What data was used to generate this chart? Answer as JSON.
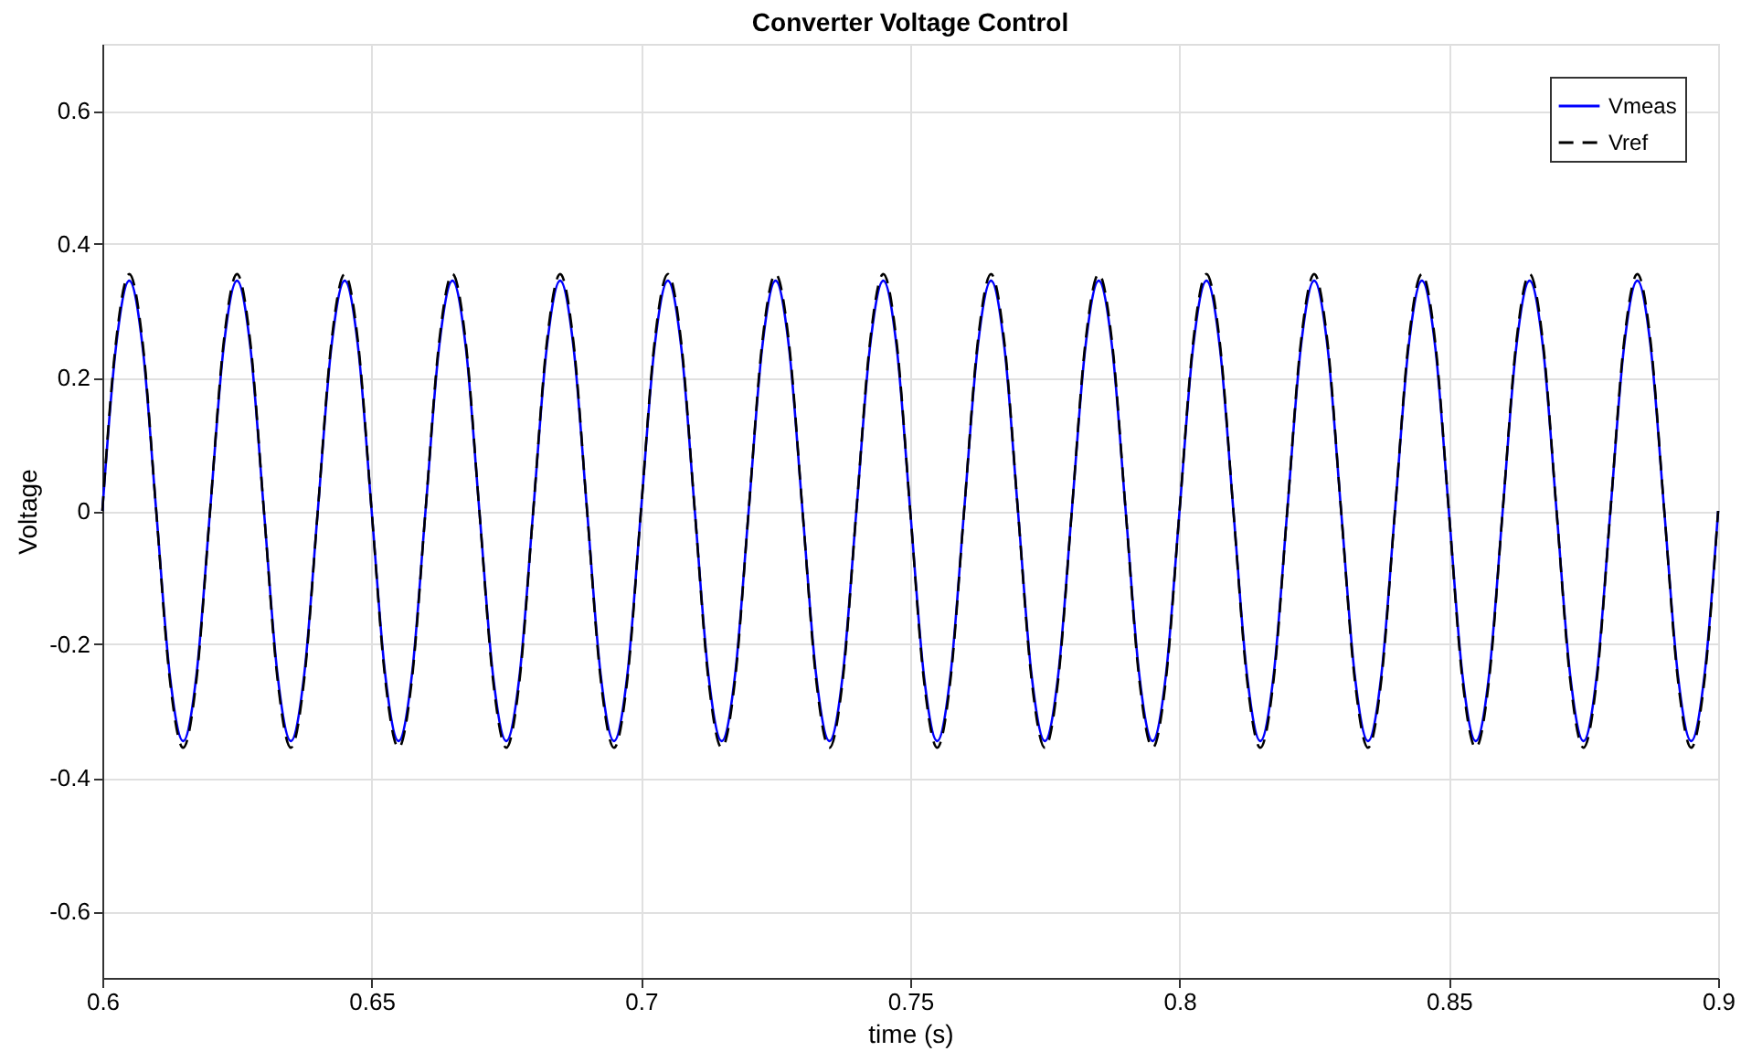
{
  "chart_data": {
    "type": "line",
    "title": "Converter Voltage Control",
    "xlabel": "time (s)",
    "ylabel": "Voltage",
    "x": [
      0.6,
      0.6025,
      0.605,
      0.6075,
      0.61,
      0.6125,
      0.615,
      0.6175,
      0.62,
      0.6225,
      0.625,
      0.6275,
      0.63,
      0.6325,
      0.635,
      0.6375,
      0.64,
      0.6425,
      0.645,
      0.6475,
      0.65,
      0.6525,
      0.655,
      0.6575,
      0.66,
      0.6625,
      0.665,
      0.6675,
      0.67,
      0.6725,
      0.675,
      0.6775,
      0.68,
      0.6825,
      0.685,
      0.6875,
      0.69,
      0.6925,
      0.695,
      0.6975,
      0.7,
      0.7025,
      0.705,
      0.7075,
      0.71,
      0.7125,
      0.715,
      0.7175,
      0.72,
      0.7225,
      0.725,
      0.7275,
      0.73,
      0.7325,
      0.735,
      0.7375,
      0.74,
      0.7425,
      0.745,
      0.7475,
      0.75,
      0.7525,
      0.755,
      0.7575,
      0.76,
      0.7625,
      0.765,
      0.7675,
      0.77,
      0.7725,
      0.775,
      0.7775,
      0.78,
      0.7825,
      0.785,
      0.7875,
      0.79,
      0.7925,
      0.795,
      0.7975,
      0.8,
      0.8025,
      0.805,
      0.8075,
      0.81,
      0.8125,
      0.815,
      0.8175,
      0.82,
      0.8225,
      0.825,
      0.8275,
      0.83,
      0.8325,
      0.835,
      0.8375,
      0.84,
      0.8425,
      0.845,
      0.8475,
      0.85,
      0.8525,
      0.855,
      0.8575,
      0.86,
      0.8625,
      0.865,
      0.8675,
      0.87,
      0.8725,
      0.875,
      0.8775,
      0.88,
      0.8825,
      0.885,
      0.8875,
      0.89,
      0.8925,
      0.895,
      0.8975,
      0.9
    ],
    "series": [
      {
        "name": "Vmeas",
        "color": "#0000ff",
        "line_style": "solid",
        "values": [
          0,
          0.244,
          0.345,
          0.244,
          0,
          -0.244,
          -0.345,
          -0.244,
          0,
          0.244,
          0.345,
          0.244,
          0,
          -0.244,
          -0.345,
          -0.244,
          0,
          0.244,
          0.345,
          0.244,
          0,
          -0.244,
          -0.345,
          -0.244,
          0,
          0.244,
          0.345,
          0.244,
          0,
          -0.244,
          -0.345,
          -0.244,
          0,
          0.244,
          0.345,
          0.244,
          0,
          -0.244,
          -0.345,
          -0.244,
          0,
          0.244,
          0.345,
          0.244,
          0,
          -0.244,
          -0.345,
          -0.244,
          0,
          0.244,
          0.345,
          0.244,
          0,
          -0.244,
          -0.345,
          -0.244,
          0,
          0.244,
          0.345,
          0.244,
          0,
          -0.244,
          -0.345,
          -0.244,
          0,
          0.244,
          0.345,
          0.244,
          0,
          -0.244,
          -0.345,
          -0.244,
          0,
          0.244,
          0.345,
          0.244,
          0,
          -0.244,
          -0.345,
          -0.244,
          0,
          0.244,
          0.345,
          0.244,
          0,
          -0.244,
          -0.345,
          -0.244,
          0,
          0.244,
          0.345,
          0.244,
          0,
          -0.244,
          -0.345,
          -0.244,
          0,
          0.244,
          0.345,
          0.244,
          0,
          -0.244,
          -0.345,
          -0.244,
          0,
          0.244,
          0.345,
          0.244,
          0,
          -0.244,
          -0.345,
          -0.244,
          0,
          0.244,
          0.345,
          0.244,
          0,
          -0.244,
          -0.345,
          -0.244,
          0
        ]
      },
      {
        "name": "Vref",
        "color": "#000000",
        "line_style": "dashed",
        "values": [
          0,
          0.251,
          0.355,
          0.251,
          0,
          -0.251,
          -0.355,
          -0.251,
          0,
          0.251,
          0.355,
          0.251,
          0,
          -0.251,
          -0.355,
          -0.251,
          0,
          0.251,
          0.355,
          0.251,
          0,
          -0.251,
          -0.355,
          -0.251,
          0,
          0.251,
          0.355,
          0.251,
          0,
          -0.251,
          -0.355,
          -0.251,
          0,
          0.251,
          0.355,
          0.251,
          0,
          -0.251,
          -0.355,
          -0.251,
          0,
          0.251,
          0.355,
          0.251,
          0,
          -0.251,
          -0.355,
          -0.251,
          0,
          0.251,
          0.355,
          0.251,
          0,
          -0.251,
          -0.355,
          -0.251,
          0,
          0.251,
          0.355,
          0.251,
          0,
          -0.251,
          -0.355,
          -0.251,
          0,
          0.251,
          0.355,
          0.251,
          0,
          -0.251,
          -0.355,
          -0.251,
          0,
          0.251,
          0.355,
          0.251,
          0,
          -0.251,
          -0.355,
          -0.251,
          0,
          0.251,
          0.355,
          0.251,
          0,
          -0.251,
          -0.355,
          -0.251,
          0,
          0.251,
          0.355,
          0.251,
          0,
          -0.251,
          -0.355,
          -0.251,
          0,
          0.251,
          0.355,
          0.251,
          0,
          -0.251,
          -0.355,
          -0.251,
          0,
          0.251,
          0.355,
          0.251,
          0,
          -0.251,
          -0.355,
          -0.251,
          0,
          0.251,
          0.355,
          0.251,
          0,
          -0.251,
          -0.355,
          -0.251,
          0
        ]
      }
    ],
    "xlim": [
      0.6,
      0.9
    ],
    "xticks": [
      0.6,
      0.65,
      0.7,
      0.75,
      0.8,
      0.85,
      0.9
    ],
    "ylim": [
      -0.7,
      0.7
    ],
    "yticks": [
      -0.6,
      -0.4,
      -0.2,
      0,
      0.2,
      0.4,
      0.6
    ],
    "grid": true,
    "legend": "top right"
  }
}
